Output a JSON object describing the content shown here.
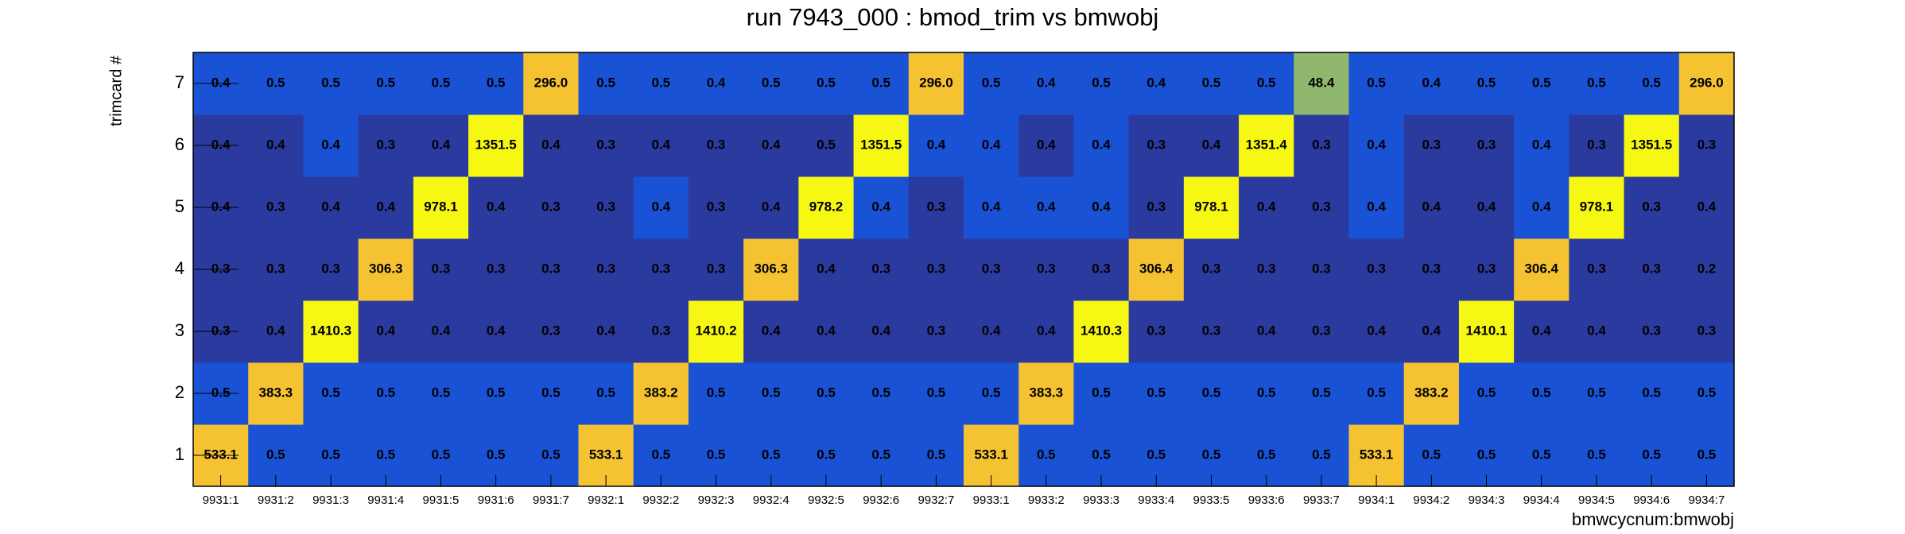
{
  "chart_data": {
    "type": "heatmap",
    "title": "run 7943_000 : bmod_trim vs bmwobj",
    "x_label": "bmwcycnum:bmwobj",
    "y_label": "trimcard #",
    "x": [
      "9931:1",
      "9931:2",
      "9931:3",
      "9931:4",
      "9931:5",
      "9931:6",
      "9931:7",
      "9932:1",
      "9932:2",
      "9932:3",
      "9932:4",
      "9932:5",
      "9932:6",
      "9932:7",
      "9933:1",
      "9933:2",
      "9933:3",
      "9933:4",
      "9933:5",
      "9933:6",
      "9933:7",
      "9934:1",
      "9934:2",
      "9934:3",
      "9934:4",
      "9934:5",
      "9934:6",
      "9934:7"
    ],
    "y": [
      1,
      2,
      3,
      4,
      5,
      6,
      7
    ],
    "values": [
      [
        533.1,
        0.5,
        0.5,
        0.5,
        0.5,
        0.5,
        0.5,
        533.1,
        0.5,
        0.5,
        0.5,
        0.5,
        0.5,
        0.5,
        533.1,
        0.5,
        0.5,
        0.5,
        0.5,
        0.5,
        0.5,
        533.1,
        0.5,
        0.5,
        0.5,
        0.5,
        0.5,
        0.5
      ],
      [
        0.5,
        383.3,
        0.5,
        0.5,
        0.5,
        0.5,
        0.5,
        0.5,
        383.2,
        0.5,
        0.5,
        0.5,
        0.5,
        0.5,
        0.5,
        383.3,
        0.5,
        0.5,
        0.5,
        0.5,
        0.5,
        0.5,
        383.2,
        0.5,
        0.5,
        0.5,
        0.5,
        0.5
      ],
      [
        0.3,
        0.4,
        1410.3,
        0.4,
        0.4,
        0.4,
        0.3,
        0.4,
        0.3,
        1410.2,
        0.4,
        0.4,
        0.4,
        0.3,
        0.4,
        0.4,
        1410.3,
        0.3,
        0.3,
        0.4,
        0.3,
        0.4,
        0.4,
        1410.1,
        0.4,
        0.4,
        0.3,
        0.3
      ],
      [
        0.3,
        0.3,
        0.3,
        306.3,
        0.3,
        0.3,
        0.3,
        0.3,
        0.3,
        0.3,
        306.3,
        0.4,
        0.3,
        0.3,
        0.3,
        0.3,
        0.3,
        306.4,
        0.3,
        0.3,
        0.3,
        0.3,
        0.3,
        0.3,
        306.4,
        0.3,
        0.3,
        0.2
      ],
      [
        0.4,
        0.3,
        0.4,
        0.4,
        978.1,
        0.4,
        0.3,
        0.3,
        0.4,
        0.3,
        0.4,
        978.2,
        0.4,
        0.3,
        0.4,
        0.4,
        0.4,
        0.3,
        978.1,
        0.4,
        0.3,
        0.4,
        0.4,
        0.4,
        0.4,
        978.1,
        0.3,
        0.4
      ],
      [
        0.4,
        0.4,
        0.4,
        0.3,
        0.4,
        1351.5,
        0.4,
        0.3,
        0.4,
        0.3,
        0.4,
        0.5,
        1351.5,
        0.4,
        0.4,
        0.4,
        0.4,
        0.3,
        0.4,
        1351.4,
        0.3,
        0.4,
        0.3,
        0.3,
        0.4,
        0.3,
        1351.5,
        0.3
      ],
      [
        0.4,
        0.5,
        0.5,
        0.5,
        0.5,
        0.5,
        296.0,
        0.5,
        0.5,
        0.4,
        0.5,
        0.5,
        0.5,
        296.0,
        0.5,
        0.4,
        0.5,
        0.4,
        0.5,
        0.5,
        48.4,
        0.5,
        0.4,
        0.5,
        0.5,
        0.5,
        0.5,
        296.0
      ]
    ],
    "value_labels": [
      [
        "533.1",
        "0.5",
        "0.5",
        "0.5",
        "0.5",
        "0.5",
        "0.5",
        "533.1",
        "0.5",
        "0.5",
        "0.5",
        "0.5",
        "0.5",
        "0.5",
        "533.1",
        "0.5",
        "0.5",
        "0.5",
        "0.5",
        "0.5",
        "0.5",
        "533.1",
        "0.5",
        "0.5",
        "0.5",
        "0.5",
        "0.5",
        "0.5"
      ],
      [
        "0.5",
        "383.3",
        "0.5",
        "0.5",
        "0.5",
        "0.5",
        "0.5",
        "0.5",
        "383.2",
        "0.5",
        "0.5",
        "0.5",
        "0.5",
        "0.5",
        "0.5",
        "383.3",
        "0.5",
        "0.5",
        "0.5",
        "0.5",
        "0.5",
        "0.5",
        "383.2",
        "0.5",
        "0.5",
        "0.5",
        "0.5",
        "0.5"
      ],
      [
        "0.3",
        "0.4",
        "1410.3",
        "0.4",
        "0.4",
        "0.4",
        "0.3",
        "0.4",
        "0.3",
        "1410.2",
        "0.4",
        "0.4",
        "0.4",
        "0.3",
        "0.4",
        "0.4",
        "1410.3",
        "0.3",
        "0.3",
        "0.4",
        "0.3",
        "0.4",
        "0.4",
        "1410.1",
        "0.4",
        "0.4",
        "0.3",
        "0.3"
      ],
      [
        "0.3",
        "0.3",
        "0.3",
        "306.3",
        "0.3",
        "0.3",
        "0.3",
        "0.3",
        "0.3",
        "0.3",
        "306.3",
        "0.4",
        "0.3",
        "0.3",
        "0.3",
        "0.3",
        "0.3",
        "306.4",
        "0.3",
        "0.3",
        "0.3",
        "0.3",
        "0.3",
        "0.3",
        "306.4",
        "0.3",
        "0.3",
        "0.2"
      ],
      [
        "0.4",
        "0.3",
        "0.4",
        "0.4",
        "978.1",
        "0.4",
        "0.3",
        "0.3",
        "0.4",
        "0.3",
        "0.4",
        "978.2",
        "0.4",
        "0.3",
        "0.4",
        "0.4",
        "0.4",
        "0.3",
        "978.1",
        "0.4",
        "0.3",
        "0.4",
        "0.4",
        "0.4",
        "0.4",
        "978.1",
        "0.3",
        "0.4"
      ],
      [
        "0.4",
        "0.4",
        "0.4",
        "0.3",
        "0.4",
        "1351.5",
        "0.4",
        "0.3",
        "0.4",
        "0.3",
        "0.4",
        "0.5",
        "1351.5",
        "0.4",
        "0.4",
        "0.4",
        "0.4",
        "0.3",
        "0.4",
        "1351.4",
        "0.3",
        "0.4",
        "0.3",
        "0.3",
        "0.4",
        "0.3",
        "1351.5",
        "0.3"
      ],
      [
        "0.4",
        "0.5",
        "0.5",
        "0.5",
        "0.5",
        "0.5",
        "296.0",
        "0.5",
        "0.5",
        "0.4",
        "0.5",
        "0.5",
        "0.5",
        "296.0",
        "0.5",
        "0.4",
        "0.5",
        "0.4",
        "0.5",
        "0.5",
        "48.4",
        "0.5",
        "0.4",
        "0.5",
        "0.5",
        "0.5",
        "0.5",
        "296.0"
      ]
    ],
    "colors": [
      [
        "#f5c232",
        "#1a52d6",
        "#1a52d6",
        "#1a52d6",
        "#1a52d6",
        "#1a52d6",
        "#1a52d6",
        "#f5c232",
        "#1a52d6",
        "#1a52d6",
        "#1a52d6",
        "#1a52d6",
        "#1a52d6",
        "#1a52d6",
        "#f5c232",
        "#1a52d6",
        "#1a52d6",
        "#1a52d6",
        "#1a52d6",
        "#1a52d6",
        "#1a52d6",
        "#f5c232",
        "#1a52d6",
        "#1a52d6",
        "#1a52d6",
        "#1a52d6",
        "#1a52d6",
        "#1a52d6"
      ],
      [
        "#1a52d6",
        "#f5c232",
        "#1a52d6",
        "#1a52d6",
        "#1a52d6",
        "#1a52d6",
        "#1a52d6",
        "#1a52d6",
        "#f5c232",
        "#1a52d6",
        "#1a52d6",
        "#1a52d6",
        "#1a52d6",
        "#1a52d6",
        "#1a52d6",
        "#f5c232",
        "#1a52d6",
        "#1a52d6",
        "#1a52d6",
        "#1a52d6",
        "#1a52d6",
        "#1a52d6",
        "#f5c232",
        "#1a52d6",
        "#1a52d6",
        "#1a52d6",
        "#1a52d6",
        "#1a52d6"
      ],
      [
        "#2b3a9e",
        "#2b3a9e",
        "#f7f714",
        "#2b3a9e",
        "#2b3a9e",
        "#2b3a9e",
        "#2b3a9e",
        "#2b3a9e",
        "#2b3a9e",
        "#f7f714",
        "#2b3a9e",
        "#2b3a9e",
        "#2b3a9e",
        "#2b3a9e",
        "#2b3a9e",
        "#2b3a9e",
        "#f7f714",
        "#2b3a9e",
        "#2b3a9e",
        "#2b3a9e",
        "#2b3a9e",
        "#2b3a9e",
        "#2b3a9e",
        "#f7f714",
        "#2b3a9e",
        "#2b3a9e",
        "#2b3a9e",
        "#2b3a9e"
      ],
      [
        "#2b3a9e",
        "#2b3a9e",
        "#2b3a9e",
        "#f5c232",
        "#2b3a9e",
        "#2b3a9e",
        "#2b3a9e",
        "#2b3a9e",
        "#2b3a9e",
        "#2b3a9e",
        "#f5c232",
        "#2b3a9e",
        "#2b3a9e",
        "#2b3a9e",
        "#2b3a9e",
        "#2b3a9e",
        "#2b3a9e",
        "#f5c232",
        "#2b3a9e",
        "#2b3a9e",
        "#2b3a9e",
        "#2b3a9e",
        "#2b3a9e",
        "#2b3a9e",
        "#f5c232",
        "#2b3a9e",
        "#2b3a9e",
        "#2b3a9e"
      ],
      [
        "#2b3a9e",
        "#2b3a9e",
        "#2b3a9e",
        "#2b3a9e",
        "#f7f714",
        "#2b3a9e",
        "#2b3a9e",
        "#2b3a9e",
        "#1a52d6",
        "#2b3a9e",
        "#2b3a9e",
        "#f7f714",
        "#1a52d6",
        "#2b3a9e",
        "#1a52d6",
        "#1a52d6",
        "#1a52d6",
        "#2b3a9e",
        "#f7f714",
        "#2b3a9e",
        "#2b3a9e",
        "#1a52d6",
        "#2b3a9e",
        "#2b3a9e",
        "#1a52d6",
        "#f7f714",
        "#2b3a9e",
        "#2b3a9e"
      ],
      [
        "#2b3a9e",
        "#2b3a9e",
        "#1a52d6",
        "#2b3a9e",
        "#2b3a9e",
        "#f7f714",
        "#2b3a9e",
        "#2b3a9e",
        "#2b3a9e",
        "#2b3a9e",
        "#2b3a9e",
        "#2b3a9e",
        "#f7f714",
        "#1a52d6",
        "#1a52d6",
        "#2b3a9e",
        "#1a52d6",
        "#2b3a9e",
        "#2b3a9e",
        "#f7f714",
        "#2b3a9e",
        "#1a52d6",
        "#2b3a9e",
        "#2b3a9e",
        "#1a52d6",
        "#2b3a9e",
        "#f7f714",
        "#2b3a9e"
      ],
      [
        "#1a52d6",
        "#1a52d6",
        "#1a52d6",
        "#1a52d6",
        "#1a52d6",
        "#1a52d6",
        "#f5c232",
        "#1a52d6",
        "#1a52d6",
        "#1a52d6",
        "#1a52d6",
        "#1a52d6",
        "#1a52d6",
        "#f5c232",
        "#1a52d6",
        "#1a52d6",
        "#1a52d6",
        "#1a52d6",
        "#1a52d6",
        "#1a52d6",
        "#8fb86e",
        "#1a52d6",
        "#1a52d6",
        "#1a52d6",
        "#1a52d6",
        "#1a52d6",
        "#1a52d6",
        "#f5c232"
      ]
    ]
  }
}
